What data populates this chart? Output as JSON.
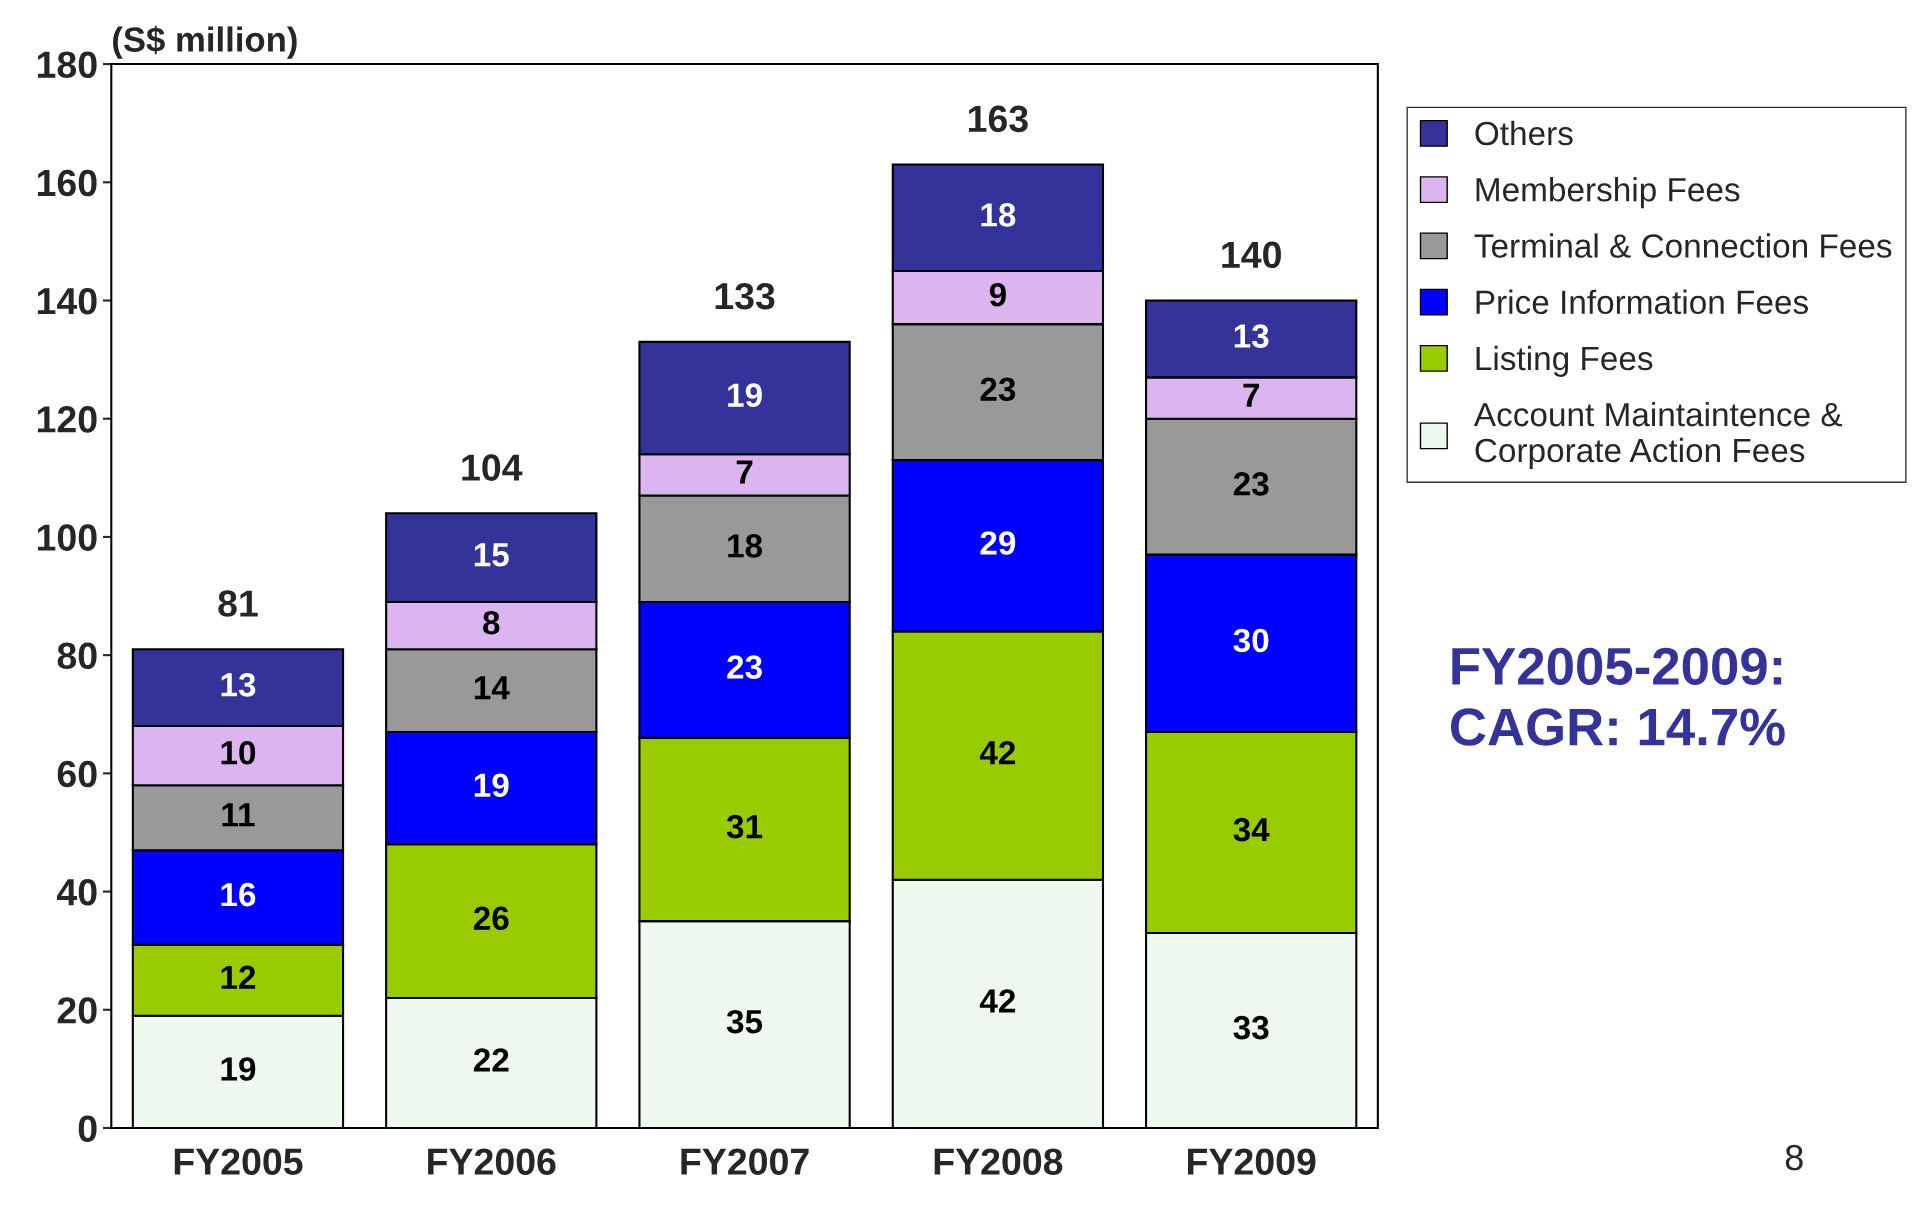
{
  "chart_data": {
    "type": "bar",
    "ylabel": "(S$ million)",
    "categories": [
      "FY2005",
      "FY2006",
      "FY2007",
      "FY2008",
      "FY2009"
    ],
    "stacked": true,
    "data_labels": true,
    "totals": [
      "81",
      "104",
      "133",
      "163",
      "140"
    ],
    "series": [
      {
        "name": "Account Maintaintence &\nCorporate Action Fees",
        "color": "#eef8ee",
        "values": [
          19,
          22,
          35,
          42,
          33
        ]
      },
      {
        "name": "Listing Fees",
        "color": "#99cc00",
        "values": [
          12,
          26,
          31,
          42,
          34
        ]
      },
      {
        "name": "Price Information Fees",
        "color": "#0000ff",
        "values": [
          16,
          19,
          23,
          29,
          30
        ]
      },
      {
        "name": "Terminal & Connection Fees",
        "color": "#999999",
        "values": [
          11,
          14,
          18,
          23,
          23
        ]
      },
      {
        "name": "Membership Fees",
        "color": "#dcb4f0",
        "values": [
          10,
          8,
          7,
          9,
          7
        ]
      },
      {
        "name": "Others",
        "color": "#333399",
        "values": [
          13,
          15,
          19,
          18,
          13
        ]
      }
    ],
    "ylim": [
      0,
      180
    ],
    "yticks": [
      0,
      20,
      40,
      60,
      80,
      100,
      120,
      140,
      160,
      180
    ],
    "grid": false,
    "legend": "right",
    "annotations": [
      "FY2005-2009:\nCAGR: 14.7%",
      "8"
    ]
  }
}
